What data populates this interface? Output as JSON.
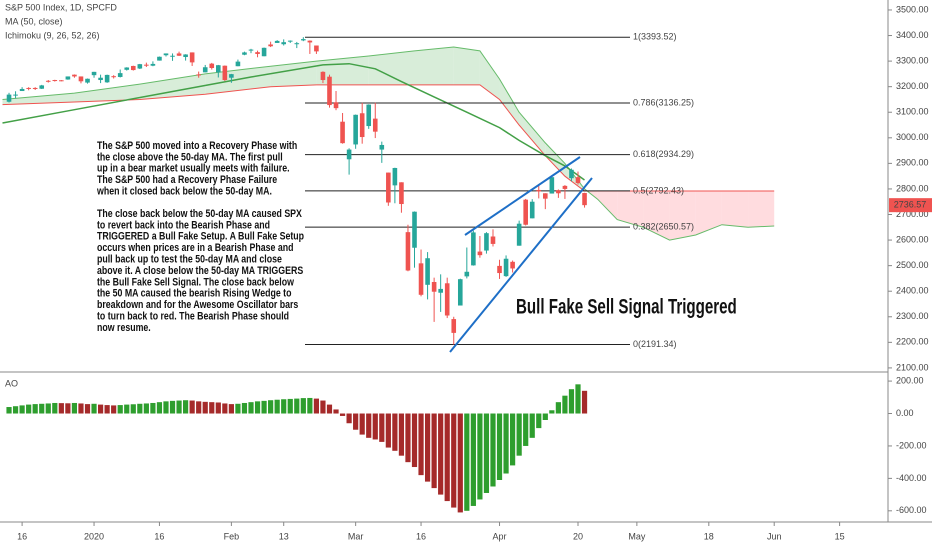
{
  "chart_data": [
    {
      "type": "candlestick",
      "title": "S&P 500 Index, 1D, SPCFD",
      "xlim": [
        -1.38,
        134.4
      ],
      "xticks": [
        {
          "value": 2,
          "label": "16"
        },
        {
          "value": 13,
          "label": "2020"
        },
        {
          "value": 23,
          "label": "16"
        },
        {
          "value": 34,
          "label": "Feb"
        },
        {
          "value": 42,
          "label": "13"
        },
        {
          "value": 53,
          "label": "Mar"
        },
        {
          "value": 63,
          "label": "16"
        },
        {
          "value": 75,
          "label": "Apr"
        },
        {
          "value": 87,
          "label": "20"
        },
        {
          "value": 96,
          "label": "May"
        },
        {
          "value": 107,
          "label": "18"
        },
        {
          "value": 117,
          "label": "Jun"
        },
        {
          "value": 127,
          "label": "15"
        }
      ],
      "ylim": [
        2084,
        3539
      ],
      "yticks": [
        {
          "value": 3500,
          "label": "3500.00"
        },
        {
          "value": 3400,
          "label": "3400.00"
        },
        {
          "value": 3300,
          "label": "3300.00"
        },
        {
          "value": 3200,
          "label": "3200.00"
        },
        {
          "value": 3100,
          "label": "3100.00"
        },
        {
          "value": 3000,
          "label": "3000.00"
        },
        {
          "value": 2900,
          "label": "2900.00"
        },
        {
          "value": 2800,
          "label": "2800.00"
        },
        {
          "value": 2700,
          "label": "2700.00"
        },
        {
          "value": 2600,
          "label": "2600.00"
        },
        {
          "value": 2500,
          "label": "2500.00"
        },
        {
          "value": 2400,
          "label": "2400.00"
        },
        {
          "value": 2300,
          "label": "2300.00"
        },
        {
          "value": 2200,
          "label": "2200.00"
        },
        {
          "value": 2100,
          "label": "2100.00"
        }
      ],
      "up_color": "#26a69a",
      "down_color": "#ef5350",
      "open": [
        3141,
        3166,
        3183,
        3195,
        3195,
        3192,
        3223,
        3226,
        3225,
        3228,
        3247,
        3240,
        3216,
        3245,
        3226,
        3217,
        3241,
        3238,
        3266,
        3281,
        3271,
        3286,
        3282,
        3302,
        3323,
        3321,
        3330,
        3316,
        3334,
        3248,
        3256,
        3290,
        3256,
        3282,
        3235,
        3280,
        3325,
        3344,
        3335,
        3319,
        3365,
        3371,
        3366,
        3378,
        3369,
        3381,
        3380,
        3361,
        3258,
        3239,
        3139,
        3063,
        2916,
        2974,
        3096,
        3046,
        3075,
        2954,
        2864,
        2814,
        2826,
        2631,
        2570,
        2509,
        2425,
        2436,
        2394,
        2431,
        2291,
        2344,
        2458,
        2501,
        2555,
        2559,
        2614,
        2499,
        2459,
        2515,
        2578,
        2758,
        2685,
        2796,
        2783,
        2782,
        2795,
        2812,
        2842,
        2846,
        2784
      ],
      "high": [
        3176,
        3182,
        3198,
        3198,
        3198,
        3207,
        3226,
        3227,
        3226,
        3240,
        3248,
        3240,
        3232,
        3258,
        3247,
        3247,
        3245,
        3267,
        3276,
        3282,
        3289,
        3294,
        3299,
        3318,
        3330,
        3330,
        3337,
        3327,
        3334,
        3259,
        3285,
        3293,
        3285,
        3283,
        3250,
        3306,
        3337,
        3348,
        3341,
        3353,
        3376,
        3382,
        3385,
        3381,
        3375,
        3393.52,
        3381,
        3361,
        3260,
        3247,
        3183,
        3097,
        2959,
        3091,
        3137,
        3131,
        3137,
        2985,
        2864,
        2883,
        2826,
        2660,
        2712,
        2563,
        2553,
        2453,
        2466,
        2453,
        2300,
        2449,
        2571,
        2637,
        2616,
        2631,
        2642,
        2523,
        2540,
        2520,
        2676,
        2761,
        2760,
        2819,
        2783,
        2852,
        2798,
        2815,
        2880,
        2868,
        2785
      ],
      "low": [
        3138,
        3154,
        3183,
        3186,
        3187,
        3191,
        3216,
        3220,
        3221,
        3227,
        3235,
        3213,
        3212,
        3235,
        3214,
        3215,
        3232,
        3236,
        3263,
        3263,
        3269,
        3277,
        3280,
        3302,
        3318,
        3301,
        3320,
        3302,
        3281,
        3235,
        3256,
        3267,
        3236,
        3222,
        3215,
        3280,
        3323,
        3331,
        3315,
        3319,
        3355,
        3371,
        3361,
        3371,
        3351,
        3378,
        3328,
        3328,
        3214,
        3118,
        3108,
        2977,
        2856,
        2957,
        2977,
        3035,
        2999,
        2902,
        2734,
        2744,
        2707,
        2478,
        2492,
        2380,
        2368,
        2280,
        2319,
        2295,
        2191.34,
        2345,
        2450,
        2500,
        2531,
        2547,
        2575,
        2448,
        2456,
        2473,
        2578,
        2657,
        2685,
        2763,
        2721,
        2782,
        2765,
        2761,
        2830,
        2817,
        2727
      ],
      "close": [
        3169,
        3169,
        3191,
        3192,
        3191,
        3205,
        3221,
        3224,
        3223,
        3240,
        3240,
        3221,
        3231,
        3258,
        3235,
        3246,
        3237,
        3253,
        3275,
        3265,
        3288,
        3283,
        3289,
        3317,
        3330,
        3321,
        3321,
        3326,
        3295,
        3244,
        3276,
        3273,
        3284,
        3226,
        3249,
        3298,
        3334,
        3345,
        3328,
        3352,
        3358,
        3379,
        3374,
        3380,
        3370,
        3386,
        3373,
        3338,
        3226,
        3128,
        3116,
        2979,
        2954,
        3090,
        3003,
        3130,
        3024,
        2972,
        2747,
        2882,
        2741,
        2481,
        2711,
        2386,
        2529,
        2398,
        2409,
        2305,
        2237,
        2447,
        2476,
        2630,
        2541,
        2627,
        2585,
        2471,
        2527,
        2489,
        2664,
        2660,
        2750,
        2790,
        2762,
        2846,
        2783,
        2800,
        2875,
        2823,
        2736.57
      ],
      "last_price": 2736.57,
      "overlays": [
        {
          "name": "MA (50, close)",
          "color": "#43a047",
          "x": [
            -1,
            10,
            22,
            37,
            48,
            52,
            56,
            60,
            65,
            70,
            75,
            78,
            82,
            85,
            88
          ],
          "values": [
            3058,
            3110,
            3167,
            3238,
            3285,
            3290,
            3270,
            3220,
            3160,
            3100,
            3040,
            2990,
            2930,
            2890,
            2835
          ]
        },
        {
          "name": "Ichimoku (9, 26, 52, 26)",
          "span_a_color": "#66bb6a",
          "span_b_color": "#ef5350",
          "up_fill": "#c8e6c9",
          "down_fill": "#ffcdd2",
          "x": [
            -1,
            10,
            20,
            30,
            40,
            47,
            55,
            62,
            68,
            72,
            75,
            78,
            82,
            85,
            88,
            90,
            93,
            97,
            101,
            105,
            109,
            113,
            117
          ],
          "span_a": [
            3150,
            3175,
            3210,
            3250,
            3280,
            3300,
            3320,
            3340,
            3355,
            3340,
            3230,
            3100,
            2980,
            2900,
            2800,
            2760,
            2680,
            2650,
            2600,
            2620,
            2660,
            2650,
            2655
          ],
          "span_b": [
            3130,
            3140,
            3150,
            3170,
            3200,
            3207,
            3207,
            3207,
            3207,
            3207,
            3150,
            3050,
            2930,
            2850,
            2792,
            2792,
            2792,
            2792,
            2792,
            2792,
            2792,
            2792,
            2792
          ]
        }
      ],
      "fib_levels": [
        {
          "value": 3393.52,
          "label": "1(3393.52)"
        },
        {
          "value": 3136.25,
          "label": "0.786(3136.25)"
        },
        {
          "value": 2934.29,
          "label": "0.618(2934.29)"
        },
        {
          "value": 2792.43,
          "label": "0.5(2792.43)"
        },
        {
          "value": 2650.57,
          "label": "0.382(2650.57)"
        },
        {
          "value": 2191.34,
          "label": "0(2191.34)"
        }
      ],
      "annotation": "Bull Fake Sell Signal Triggered",
      "notes": [
        [
          "The S&P 500 moved into a  Recovery Phase with",
          " the close above the 50-day MA. The first pull",
          "up in a bear market usually meets with failure.",
          " The S&P 500 had a Recovery Phase Failure",
          "when it closed back below the 50-day MA."
        ],
        [
          "The close back below the 50-day MA caused SPX",
          " to revert back into the Bearish Phase and",
          "TRIGGERED a Bull Fake Setup. A Bull Fake Setup",
          " occurs when prices are in a Bearish Phase and",
          "pull back up to test the 50-day MA and close",
          "above it. A close below the 50-day MA TRIGGERS",
          " the Bull Fake Sell Signal. The close back below",
          " the 50 MA caused the bearish Rising Wedge to",
          "breakdown and for the Awesome Oscillator bars",
          " to turn back to red. The Bearish Phase should",
          "now resume."
        ]
      ]
    },
    {
      "type": "bar",
      "title": "AO",
      "ylim": [
        -669,
        256
      ],
      "yticks": [
        {
          "value": 200,
          "label": "200.00"
        },
        {
          "value": 0,
          "label": "0.00"
        },
        {
          "value": -200,
          "label": "-200.00"
        },
        {
          "value": -400,
          "label": "-400.00"
        },
        {
          "value": -600,
          "label": "-600.00"
        }
      ],
      "up_color": "#2e9e2e",
      "down_color": "#a52a2a",
      "values": [
        40,
        45,
        50,
        55,
        58,
        60,
        62,
        65,
        64,
        63,
        65,
        62,
        58,
        60,
        55,
        52,
        50,
        52,
        55,
        57,
        60,
        62,
        65,
        70,
        75,
        78,
        80,
        82,
        80,
        75,
        72,
        70,
        68,
        62,
        58,
        60,
        65,
        70,
        75,
        78,
        82,
        85,
        88,
        90,
        92,
        95,
        96,
        92,
        80,
        55,
        25,
        -15,
        -60,
        -100,
        -130,
        -150,
        -160,
        -175,
        -210,
        -230,
        -260,
        -300,
        -330,
        -380,
        -420,
        -460,
        -500,
        -540,
        -580,
        -610,
        -600,
        -570,
        -530,
        -490,
        -450,
        -410,
        -370,
        -320,
        -260,
        -200,
        -150,
        -90,
        -40,
        20,
        70,
        110,
        150,
        180,
        140
      ]
    }
  ]
}
